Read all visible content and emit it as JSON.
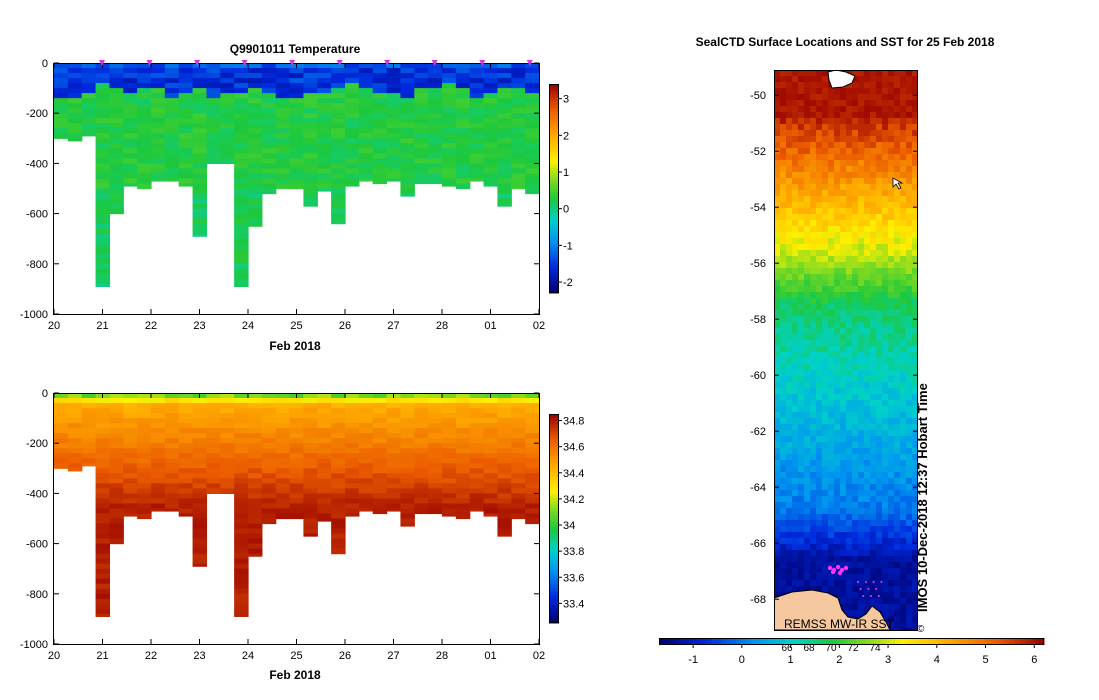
{
  "chart_data": [
    {
      "id": "temperature",
      "type": "heatmap",
      "title": "Q9901011  Temperature",
      "xlabel": "Feb 2018",
      "x_tick_labels": [
        "20",
        "21",
        "22",
        "23",
        "24",
        "25",
        "26",
        "27",
        "28",
        "01",
        "02"
      ],
      "y_tick_values": [
        0,
        -200,
        -400,
        -600,
        -800,
        -1000
      ],
      "ylim": [
        -1000,
        0
      ],
      "colorbar": {
        "min": -2.3,
        "max": 3.4,
        "ticks": [
          3,
          2,
          1,
          0,
          -1,
          -2
        ]
      },
      "profile_depths": [
        -300,
        -310,
        -290,
        -890,
        -600,
        -490,
        -500,
        -470,
        -470,
        -490,
        -690,
        -400,
        -400,
        -890,
        -650,
        -520,
        -500,
        -500,
        -570,
        -510,
        -640,
        -490,
        -470,
        -480,
        -470,
        -530,
        -480,
        -480,
        -490,
        -500,
        -470,
        -490,
        -570,
        -500,
        -520
      ],
      "mixed_layer_depths": [
        -140,
        -150,
        -130,
        -90,
        -100,
        -120,
        -100,
        -110,
        -150,
        -120,
        -100,
        -140,
        -120,
        -130,
        -110,
        -120,
        -140,
        -150,
        -130,
        -120,
        -100,
        -90,
        -110,
        -120,
        -130,
        -140,
        -100,
        -110,
        -90,
        -100,
        -150,
        -120,
        -110,
        -100,
        -130
      ],
      "markers": {
        "count": 11,
        "color": "#e033e0"
      }
    },
    {
      "id": "salinity",
      "type": "heatmap",
      "xlabel": "Feb 2018",
      "x_tick_labels": [
        "20",
        "21",
        "22",
        "23",
        "24",
        "25",
        "26",
        "27",
        "28",
        "01",
        "02"
      ],
      "y_tick_values": [
        0,
        -200,
        -400,
        -600,
        -800,
        -1000
      ],
      "ylim": [
        -1000,
        0
      ],
      "colorbar": {
        "min": 33.25,
        "max": 34.85,
        "ticks": [
          "34.8",
          "34.6",
          "34.4",
          "34.2",
          "34",
          "33.8",
          "33.6",
          "33.4"
        ]
      }
    },
    {
      "id": "sst_map",
      "type": "heatmap",
      "title": "SealCTD Surface Locations and SST for 25 Feb 2018",
      "y_tick_labels": [
        "-50",
        "-52",
        "-54",
        "-56",
        "-58",
        "-60",
        "-62",
        "-64",
        "-66",
        "-68"
      ],
      "ylim": [
        -69.1,
        -49.1
      ],
      "side_label": "IMOS 10-Dec-2018 12:37 Hobart Time",
      "source_label": "REMSS MW-IR SST",
      "source_suffix": "©",
      "colorbar": {
        "min": -1.7,
        "max": 6.2,
        "ticks": [
          "-1",
          "0",
          "1",
          "2",
          "3",
          "4",
          "5",
          "6"
        ]
      },
      "track_labels": [
        "66",
        "68",
        "70",
        "72",
        "74"
      ],
      "track_color": "#ff33ff"
    }
  ],
  "colors": {
    "axis": "#000000",
    "land": "#f5c8a0"
  }
}
